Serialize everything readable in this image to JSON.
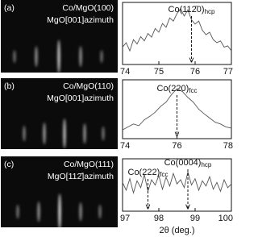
{
  "chart_data": [
    {
      "type": "line",
      "panel_label": "(a)",
      "sample": "Co/MgO(100)",
      "azimuth": "MgO[001]azimuth",
      "x": [
        74.0,
        74.1,
        74.2,
        74.3,
        74.4,
        74.5,
        74.6,
        74.7,
        74.8,
        74.9,
        75.0,
        75.1,
        75.2,
        75.3,
        75.4,
        75.5,
        75.6,
        75.7,
        75.8,
        75.9,
        76.0,
        76.1,
        76.2,
        76.3,
        76.4,
        76.5,
        76.6,
        76.7,
        76.8,
        76.9,
        77.0
      ],
      "values": [
        0.28,
        0.35,
        0.22,
        0.4,
        0.33,
        0.45,
        0.38,
        0.5,
        0.44,
        0.58,
        0.52,
        0.66,
        0.6,
        0.75,
        0.7,
        0.82,
        0.9,
        0.78,
        0.88,
        0.72,
        0.65,
        0.7,
        0.55,
        0.48,
        0.52,
        0.4,
        0.35,
        0.38,
        0.28,
        0.3,
        0.22
      ],
      "color": "#555555",
      "xlim": [
        74,
        77
      ],
      "xticks": [
        74,
        75,
        76,
        77
      ],
      "ylim": [
        0,
        1
      ],
      "annotations": [
        {
          "label": "Co(112̄0)",
          "sub": "hcp",
          "x": 75.9
        }
      ]
    },
    {
      "type": "line",
      "panel_label": "(b)",
      "sample": "Co/MgO(110)",
      "azimuth": "MgO[001]azimuth",
      "x": [
        74.0,
        74.2,
        74.4,
        74.6,
        74.8,
        75.0,
        75.2,
        75.4,
        75.6,
        75.8,
        76.0,
        76.2,
        76.4,
        76.6,
        76.8,
        77.0,
        77.2,
        77.4,
        77.6,
        77.8,
        78.0
      ],
      "values": [
        0.15,
        0.2,
        0.25,
        0.22,
        0.32,
        0.38,
        0.45,
        0.55,
        0.62,
        0.75,
        0.85,
        0.8,
        0.7,
        0.62,
        0.5,
        0.42,
        0.35,
        0.28,
        0.25,
        0.2,
        0.18
      ],
      "color": "#555555",
      "xlim": [
        74,
        78
      ],
      "xticks": [
        74,
        76,
        78
      ],
      "ylim": [
        0,
        1
      ],
      "annotations": [
        {
          "label": "Co(220)",
          "sub": "fcc",
          "x": 76.0
        }
      ]
    },
    {
      "type": "line",
      "panel_label": "(c)",
      "sample": "Co/MgO(111)",
      "azimuth": "MgO[112̄]azimuth",
      "x": [
        97.0,
        97.1,
        97.2,
        97.3,
        97.4,
        97.5,
        97.6,
        97.7,
        97.8,
        97.9,
        98.0,
        98.1,
        98.2,
        98.3,
        98.4,
        98.5,
        98.6,
        98.7,
        98.8,
        98.9,
        99.0,
        99.1,
        99.2,
        99.3,
        99.4,
        99.5,
        99.6,
        99.7,
        99.8,
        99.9,
        100.0
      ],
      "values": [
        0.55,
        0.4,
        0.62,
        0.35,
        0.58,
        0.45,
        0.7,
        0.38,
        0.6,
        0.5,
        0.68,
        0.42,
        0.65,
        0.48,
        0.72,
        0.52,
        0.6,
        0.45,
        0.75,
        0.5,
        0.62,
        0.4,
        0.58,
        0.48,
        0.66,
        0.42,
        0.55,
        0.38,
        0.6,
        0.45,
        0.52
      ],
      "color": "#555555",
      "xlim": [
        97,
        100
      ],
      "xticks": [
        97,
        98,
        99,
        100
      ],
      "ylim": [
        0,
        1
      ],
      "xlabel": "2θ (deg.)",
      "annotations": [
        {
          "label": "Co(222)",
          "sub": "fcc",
          "x": 97.7
        },
        {
          "label": "Co(0004)",
          "sub": "hcp",
          "x": 98.8
        }
      ]
    }
  ]
}
